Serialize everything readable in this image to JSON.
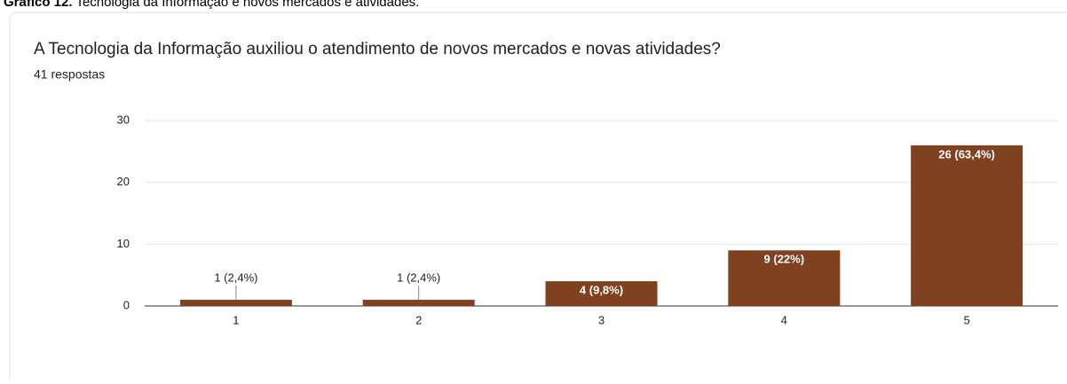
{
  "caption": {
    "label": "Gráfico 12.",
    "text": "Tecnologia da Informação e novos mercados e atividades."
  },
  "chart_data": {
    "type": "bar",
    "title": "A Tecnologia da Informação auxiliou o atendimento de novos mercados e novas atividades?",
    "subtitle": "41 respostas",
    "categories": [
      "1",
      "2",
      "3",
      "4",
      "5"
    ],
    "values": [
      1,
      1,
      4,
      9,
      26
    ],
    "value_labels": [
      "1 (2,4%)",
      "1 (2,4%)",
      "4 (9,8%)",
      "9 (22%)",
      "26 (63,4%)"
    ],
    "color": "#7f4120",
    "ylim": [
      0,
      30
    ],
    "yticks": [
      0,
      10,
      20,
      30
    ],
    "grid": true
  }
}
